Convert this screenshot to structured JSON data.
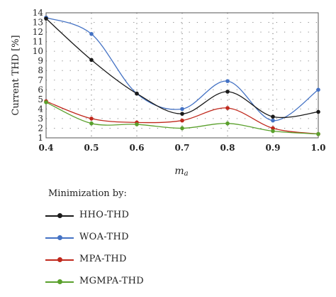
{
  "chart_data": {
    "type": "line",
    "title": "",
    "xlabel": "ma",
    "xlabel_main": "m",
    "xlabel_sub": "a",
    "ylabel": "Current THD [%]",
    "x": [
      0.4,
      0.5,
      0.6,
      0.7,
      0.8,
      0.9,
      1.0
    ],
    "xticks": [
      "0.4",
      "0.5",
      "0.6",
      "0.7",
      "0.8",
      "0.9",
      "1.0"
    ],
    "xlim": [
      0.4,
      1.0
    ],
    "ylim": [
      1,
      14
    ],
    "yticks": [
      "1",
      "2",
      "3",
      "4",
      "5",
      "6",
      "7",
      "8",
      "9",
      "10",
      "11",
      "12",
      "13",
      "14"
    ],
    "grid": true,
    "legend_title": "Minimization by:",
    "legend_position": "bottom-left",
    "series": [
      {
        "name": "HHO-THD",
        "color": "#1a1a1a",
        "values": [
          13.4,
          9.1,
          5.6,
          3.5,
          5.8,
          3.2,
          3.7
        ]
      },
      {
        "name": "WOA-THD",
        "color": "#4472c4",
        "values": [
          13.5,
          11.8,
          5.6,
          4.0,
          6.9,
          2.8,
          6.0
        ]
      },
      {
        "name": "MPA-THD",
        "color": "#c0281c",
        "values": [
          4.8,
          3.0,
          2.6,
          2.8,
          4.1,
          2.0,
          1.4
        ]
      },
      {
        "name": "MGMPA-THD",
        "color": "#5aa02c",
        "values": [
          4.7,
          2.5,
          2.4,
          2.0,
          2.5,
          1.7,
          1.4
        ]
      }
    ]
  }
}
